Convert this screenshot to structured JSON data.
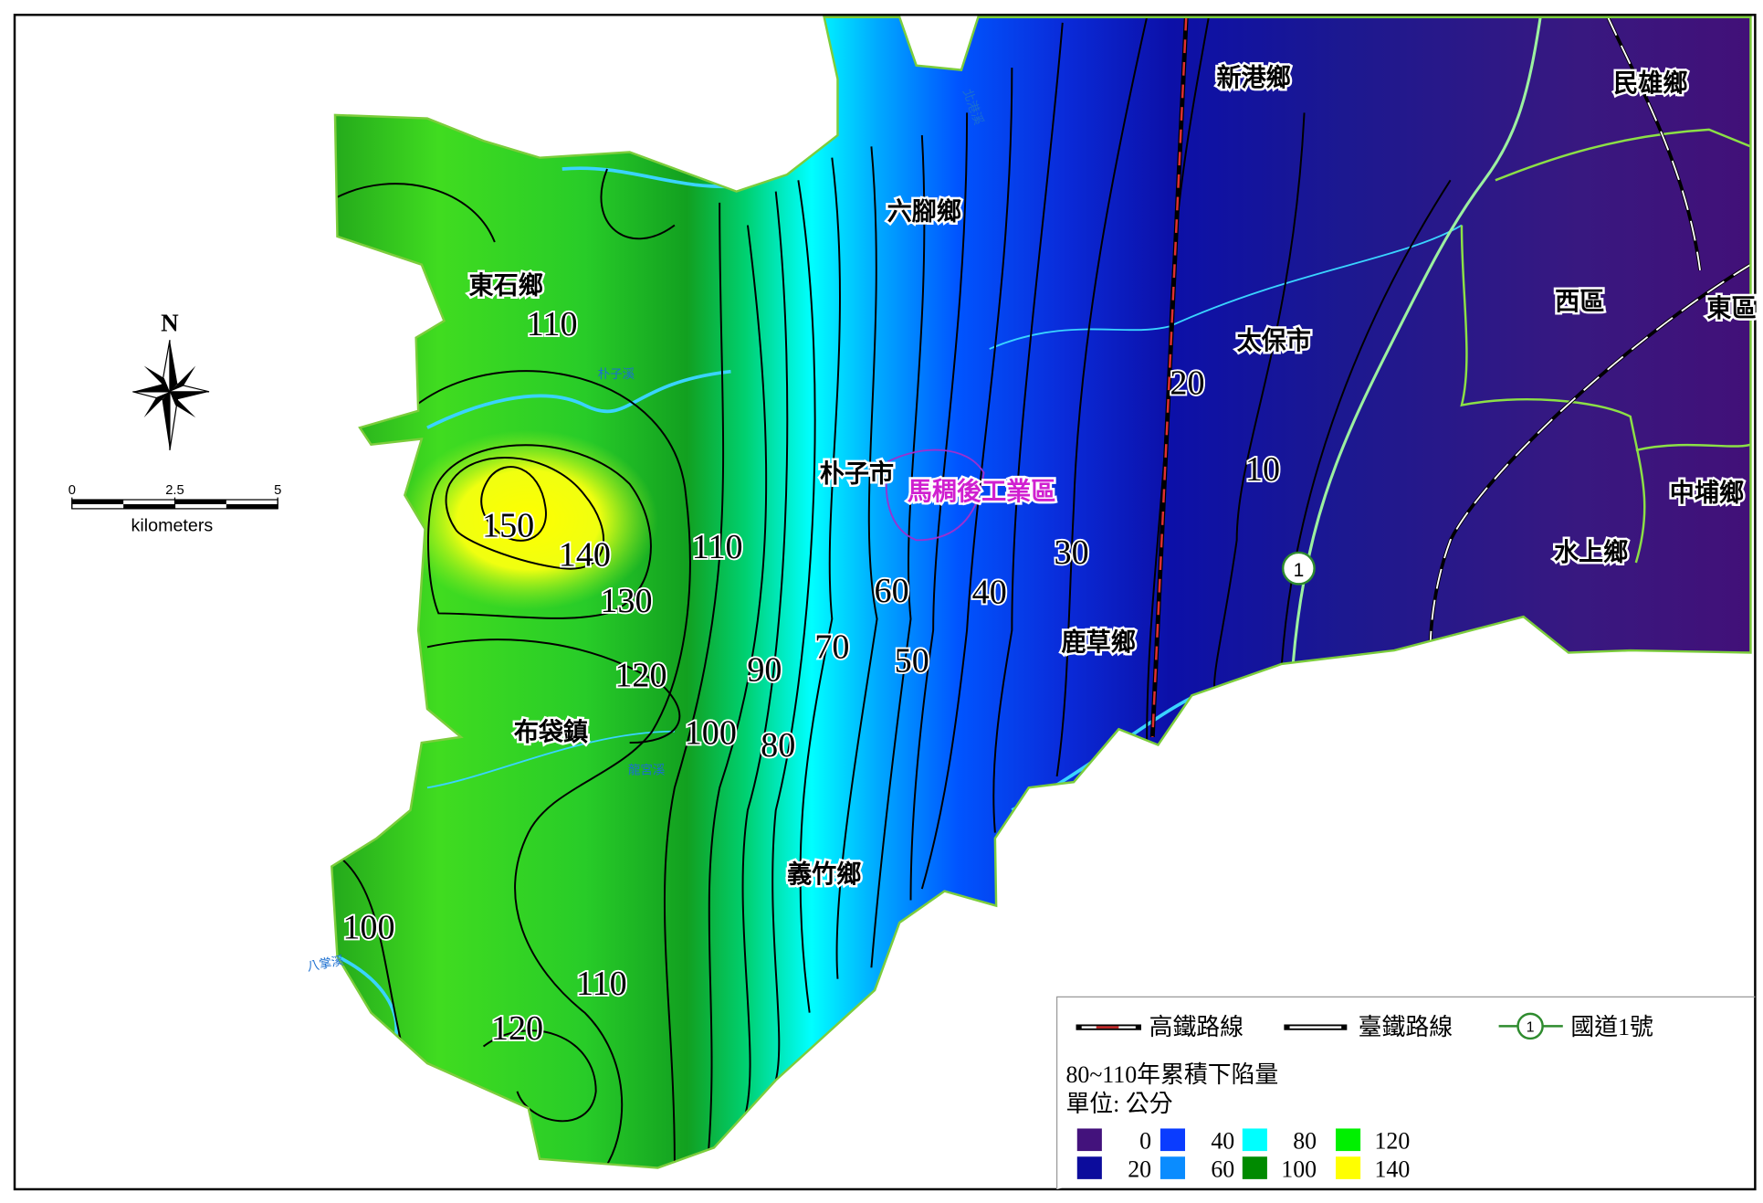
{
  "north_arrow": {
    "label": "N"
  },
  "scale_bar": {
    "ticks": [
      0,
      2.5,
      5
    ],
    "unit": "kilometers"
  },
  "places": [
    "新港鄉",
    "民雄鄉",
    "六腳鄉",
    "東石鄉",
    "太保市",
    "西區",
    "東區",
    "朴子市",
    "中埔鄉",
    "水上鄉",
    "鹿草鄉",
    "布袋鎮",
    "義竹鄉"
  ],
  "industrial_zone": "馬稠後工業區",
  "rivers": [
    "北港溪",
    "朴子溪",
    "龍宮溪",
    "八掌溪"
  ],
  "contour_labels": [
    110,
    150,
    140,
    130,
    110,
    120,
    100,
    90,
    80,
    70,
    60,
    50,
    40,
    30,
    20,
    10,
    100,
    110,
    120
  ],
  "highway_shield": "1",
  "legend": {
    "lines": [
      {
        "label": "高鐵路線"
      },
      {
        "label": "臺鐵路線"
      },
      {
        "label": "國道1號",
        "shield": "1"
      }
    ],
    "title": "80~110年累積下陷量",
    "unit": "單位: 公分",
    "classes": [
      {
        "value": 0,
        "color": "#43127c"
      },
      {
        "value": 20,
        "color": "#0c0c9c"
      },
      {
        "value": 40,
        "color": "#0a3cff"
      },
      {
        "value": 60,
        "color": "#0a8cff"
      },
      {
        "value": 80,
        "color": "#00ffff"
      },
      {
        "value": 100,
        "color": "#008a00"
      },
      {
        "value": 120,
        "color": "#00f000"
      },
      {
        "value": 140,
        "color": "#ffff00"
      }
    ]
  }
}
